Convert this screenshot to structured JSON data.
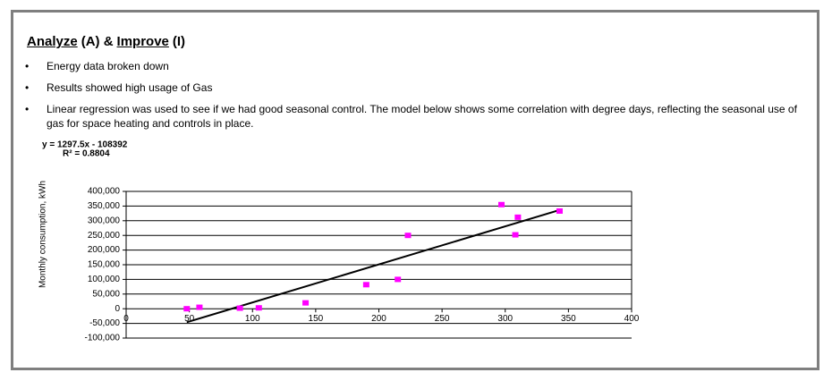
{
  "header": {
    "title_parts": [
      "Analyze",
      "(A) &",
      "Improve",
      "(I)"
    ]
  },
  "bullets": [
    "Energy data broken down",
    "Results showed high usage of Gas",
    "Linear regression was used to see if we had good seasonal control. The model below shows some correlation with degree days, reflecting the seasonal use of gas for space heating and controls in place."
  ],
  "chart_data": {
    "type": "scatter",
    "y_label": "Monthly consumption, kWh",
    "x": [
      48,
      58,
      90,
      105,
      142,
      190,
      215,
      223,
      297,
      308,
      310,
      343
    ],
    "values": [
      0,
      5000,
      2000,
      3000,
      20000,
      82000,
      100000,
      250000,
      355000,
      252000,
      312000,
      333000
    ],
    "color": "#ff00ff",
    "trendline": {
      "slope": 1297.5,
      "intercept": -108392,
      "equation": "y = 1297.5x - 108392",
      "r2": 0.8804,
      "r2_label": "R² = 0.8804",
      "color": "#000000"
    },
    "xlim": [
      0,
      400
    ],
    "xticks": [
      0,
      50,
      100,
      150,
      200,
      250,
      300,
      350,
      400
    ],
    "ylim": [
      -100000,
      400000
    ],
    "yticks": [
      {
        "value": -100000,
        "label": "-100,000"
      },
      {
        "value": -50000,
        "label": "-50,000"
      },
      0,
      {
        "value": 50000,
        "label": "50,000"
      },
      {
        "value": 100000,
        "label": "100,000"
      },
      {
        "value": 150000,
        "label": "150,000"
      },
      {
        "value": 200000,
        "label": "200,000"
      },
      {
        "value": 250000,
        "label": "250,000"
      },
      {
        "value": 300000,
        "label": "300,000"
      },
      {
        "value": 350000,
        "label": "350,000"
      },
      {
        "value": 400000,
        "label": "400,000"
      }
    ],
    "grid": true
  }
}
